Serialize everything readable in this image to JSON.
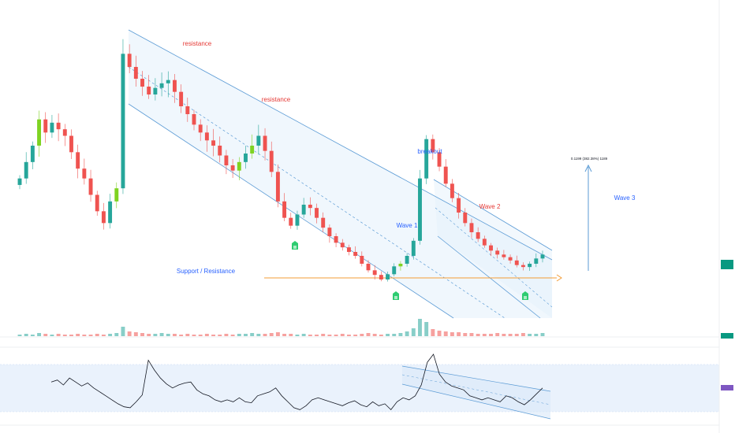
{
  "colors": {
    "up": "#26a69a",
    "up_bright": "#7ed321",
    "down": "#ef5350",
    "channel_line": "#5b9bd5",
    "channel_fill": "#e3f0fb",
    "support_line": "#f39c35",
    "rsi_line": "#131722",
    "rsi_band": "#eaf2fc",
    "text_red": "#e53935",
    "text_blue": "#2962ff",
    "price_badge": "#089981",
    "rsi_badge": "#7e57c2"
  },
  "annotations": {
    "resistance_1": "resistance",
    "resistance_2": "resistance",
    "breakout": "breakout",
    "wave_1": "Wave 1",
    "wave_2": "Wave 2",
    "wave_3": "Wave 3",
    "support_resistance": "Support / Resistance",
    "target_measure": "0.1199 (382.38%) 1189"
  },
  "icons": [
    "marker-icon",
    "marker-icon",
    "marker-icon"
  ],
  "chart_data": {
    "type": "candlestick",
    "title": "",
    "xlabel": "",
    "ylabel": "",
    "grid": false,
    "legend": "none",
    "close_series": [
      0.033,
      0.0355,
      0.038,
      0.042,
      0.04,
      0.0415,
      0.0405,
      0.0395,
      0.037,
      0.0345,
      0.033,
      0.0305,
      0.028,
      0.0262,
      0.0295,
      0.0315,
      0.052,
      0.05,
      0.0482,
      0.047,
      0.0458,
      0.0468,
      0.0475,
      0.048,
      0.0462,
      0.044,
      0.0428,
      0.0412,
      0.04,
      0.0388,
      0.038,
      0.0365,
      0.035,
      0.0342,
      0.0355,
      0.0368,
      0.038,
      0.0395,
      0.0372,
      0.034,
      0.0295,
      0.027,
      0.0258,
      0.0275,
      0.029,
      0.0285,
      0.027,
      0.0255,
      0.0242,
      0.0232,
      0.0225,
      0.0218,
      0.0212,
      0.02,
      0.019,
      0.0183,
      0.0176,
      0.0184,
      0.0196,
      0.02,
      0.0212,
      0.0235,
      0.033,
      0.039,
      0.037,
      0.0348,
      0.0322,
      0.03,
      0.0278,
      0.0262,
      0.0248,
      0.0238,
      0.0228,
      0.022,
      0.0214,
      0.021,
      0.0205,
      0.0198,
      0.0195,
      0.02,
      0.0208,
      0.0214
    ],
    "support_level": 0.0186,
    "target_change_pct": 382.38,
    "volume_series": [
      2,
      3,
      2,
      4,
      3,
      2,
      3,
      2,
      2,
      3,
      2,
      2,
      3,
      2,
      3,
      4,
      12,
      6,
      5,
      4,
      3,
      3,
      4,
      3,
      3,
      2,
      3,
      2,
      2,
      3,
      2,
      2,
      3,
      2,
      3,
      3,
      4,
      3,
      3,
      4,
      5,
      3,
      3,
      2,
      3,
      2,
      2,
      3,
      2,
      2,
      3,
      2,
      2,
      3,
      4,
      3,
      2,
      3,
      3,
      4,
      6,
      10,
      22,
      18,
      9,
      7,
      6,
      5,
      5,
      4,
      4,
      3,
      3,
      3,
      4,
      3,
      3,
      3,
      4,
      3,
      3,
      4
    ],
    "rsi_series": [
      58,
      60,
      55,
      62,
      58,
      54,
      57,
      52,
      48,
      44,
      40,
      36,
      33,
      32,
      38,
      45,
      80,
      70,
      62,
      56,
      52,
      55,
      57,
      58,
      50,
      46,
      44,
      40,
      38,
      40,
      38,
      42,
      38,
      37,
      44,
      46,
      48,
      52,
      44,
      38,
      32,
      30,
      34,
      40,
      42,
      40,
      38,
      36,
      34,
      37,
      39,
      35,
      33,
      38,
      34,
      36,
      30,
      38,
      42,
      40,
      44,
      55,
      78,
      86,
      66,
      58,
      54,
      52,
      50,
      44,
      42,
      40,
      42,
      40,
      38,
      44,
      42,
      38,
      35,
      40,
      46,
      52
    ]
  }
}
